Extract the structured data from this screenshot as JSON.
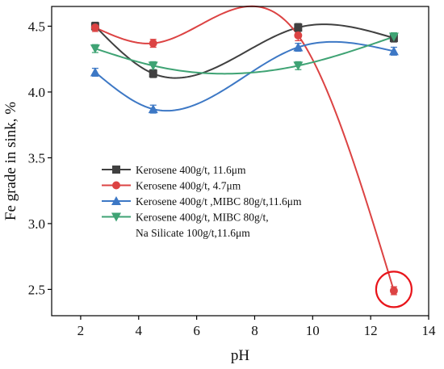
{
  "chart_data": {
    "type": "line",
    "xlabel": "pH",
    "ylabel": "Fe grade in sink, %",
    "xlim": [
      1,
      14
    ],
    "ylim": [
      2.3,
      4.65
    ],
    "x_ticks": [
      "2",
      "4",
      "6",
      "8",
      "10",
      "12",
      "14"
    ],
    "x_tick_values": [
      2,
      4,
      6,
      8,
      10,
      12,
      14
    ],
    "y_ticks": [
      "2.5",
      "3.0",
      "3.5",
      "4.0",
      "4.5"
    ],
    "y_tick_values": [
      2.5,
      3.0,
      3.5,
      4.0,
      4.5
    ],
    "grid": false,
    "legend_position": "center-left",
    "series": [
      {
        "name": "Kerosene 400g/t, 11.6μm",
        "marker": "square",
        "color": "#404040",
        "x": [
          2.5,
          4.5,
          9.5,
          12.8
        ],
        "y": [
          4.5,
          4.14,
          4.49,
          4.41
        ],
        "err": [
          0.03,
          0.03,
          0.03,
          0.03
        ]
      },
      {
        "name": "Kerosene 400g/t, 4.7μm",
        "marker": "circle",
        "color": "#dc4343",
        "x": [
          2.5,
          4.5,
          9.5,
          12.8
        ],
        "y": [
          4.49,
          4.37,
          4.43,
          2.49
        ],
        "err": [
          0.03,
          0.03,
          0.04,
          0.03
        ]
      },
      {
        "name": "Kerosene 400g/t ,MIBC 80g/t,11.6μm",
        "marker": "triangle-up",
        "color": "#3d78c5",
        "x": [
          2.5,
          4.5,
          9.5,
          12.8
        ],
        "y": [
          4.15,
          3.87,
          4.34,
          4.31
        ],
        "err": [
          0.03,
          0.03,
          0.03,
          0.03
        ]
      },
      {
        "name": "Kerosene 400g/t, MIBC 80g/t,",
        "name_line2": "Na Silicate 100g/t,11.6μm",
        "marker": "triangle-down",
        "color": "#3fa374",
        "x": [
          2.5,
          4.5,
          9.5,
          12.8
        ],
        "y": [
          4.33,
          4.2,
          4.2,
          4.42
        ],
        "err": [
          0.03,
          0.03,
          0.03,
          0.03
        ]
      }
    ],
    "annotation": {
      "type": "circle",
      "color": "#e8141a",
      "x": 12.8,
      "y": 2.5
    }
  }
}
